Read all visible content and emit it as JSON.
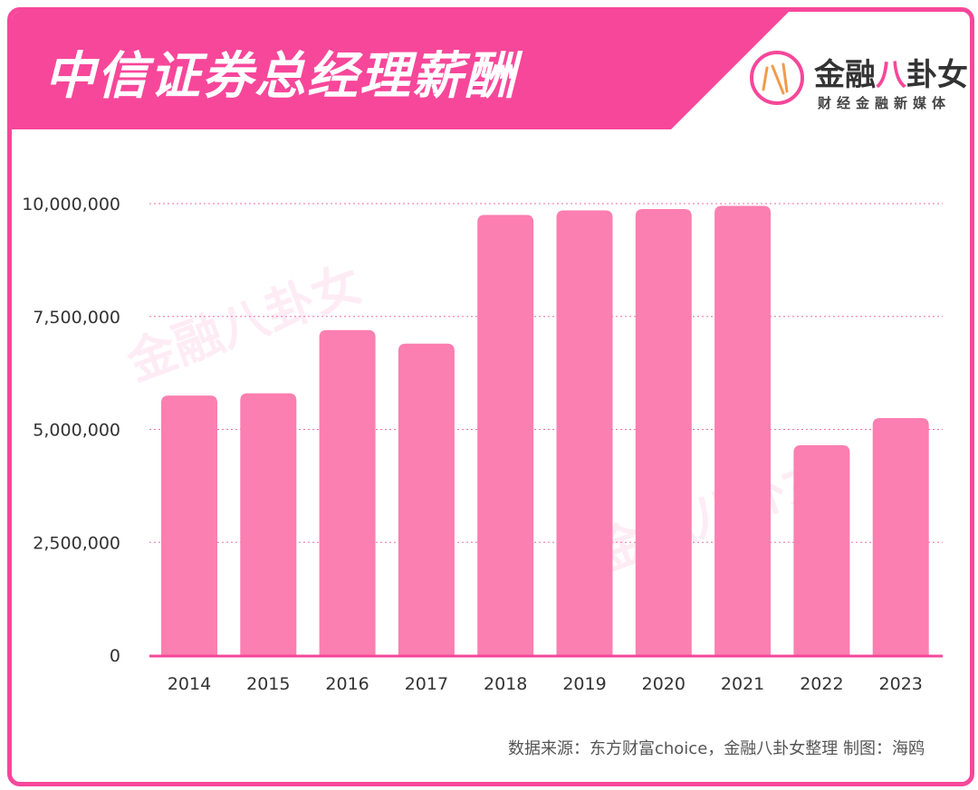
{
  "header": {
    "title": "中信证券总经理薪酬"
  },
  "brand": {
    "mark": "金",
    "name_a": "金融",
    "name_b": "八",
    "name_c": "卦女",
    "tagline": "财经金融新媒体"
  },
  "source": "数据来源：东方财富choice，金融八卦女整理    制图：海鸥",
  "colors": {
    "accent": "#f7479a",
    "bar": "#fb7fb0",
    "grid": "#f06ea7"
  },
  "chart_data": {
    "type": "bar",
    "categories": [
      "2014",
      "2015",
      "2016",
      "2017",
      "2018",
      "2019",
      "2020",
      "2021",
      "2022",
      "2023"
    ],
    "values": [
      5750000,
      5800000,
      7200000,
      6900000,
      9750000,
      9850000,
      9880000,
      9950000,
      4650000,
      5250000
    ],
    "ylim": [
      0,
      10000000
    ],
    "yticks": [
      0,
      2500000,
      5000000,
      7500000,
      10000000
    ],
    "ytick_labels": [
      "0",
      "2,500,000",
      "5,000,000",
      "7,500,000",
      "10,000,000"
    ],
    "grid": true
  }
}
